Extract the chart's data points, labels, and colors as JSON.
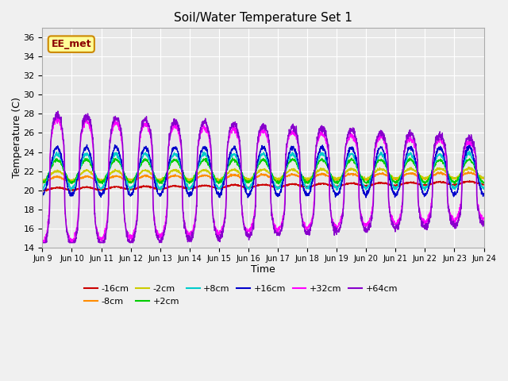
{
  "title": "Soil/Water Temperature Set 1",
  "xlabel": "Time",
  "ylabel": "Temperature (C)",
  "bg_color": "#e8e8e8",
  "xlim": [
    0,
    15
  ],
  "ylim": [
    14,
    37
  ],
  "yticks": [
    14,
    16,
    18,
    20,
    22,
    24,
    26,
    28,
    30,
    32,
    34,
    36
  ],
  "xtick_labels": [
    "Jun 9",
    "Jun 10",
    "Jun 11",
    "Jun 12",
    "Jun 13",
    "Jun 14",
    "Jun 15",
    "Jun 16",
    "Jun 17",
    "Jun 18",
    "Jun 19",
    "Jun 20",
    "Jun 21",
    "Jun 22",
    "Jun 23",
    "Jun 24"
  ],
  "series_colors": {
    "-16cm": "#cc0000",
    "-8cm": "#ff8c00",
    "-2cm": "#cccc00",
    "+2cm": "#00cc00",
    "+8cm": "#00cccc",
    "+16cm": "#0000cc",
    "+32cm": "#ff00ff",
    "+64cm": "#8800cc"
  },
  "legend_label": "EE_met",
  "legend_bg": "#ffff99",
  "legend_border": "#cc8800"
}
